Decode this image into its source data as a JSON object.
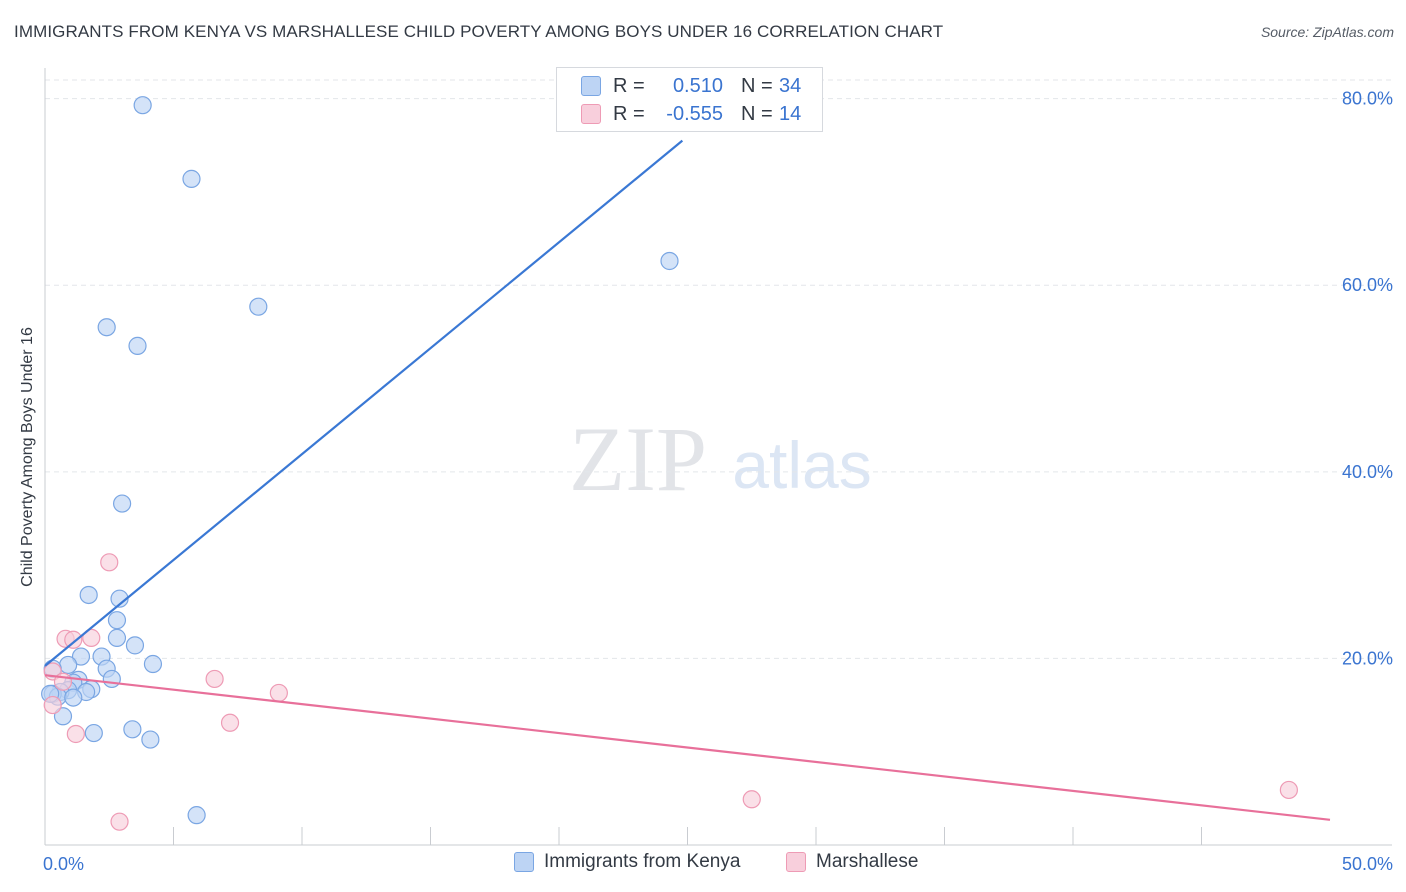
{
  "title": "IMMIGRANTS FROM KENYA VS MARSHALLESE CHILD POVERTY AMONG BOYS UNDER 16 CORRELATION CHART",
  "source": "Source: ZipAtlas.com",
  "watermark": {
    "zip": "ZIP",
    "atlas": "atlas"
  },
  "colors": {
    "blue_fill": "#bdd4f4",
    "blue_stroke": "#7aa6e3",
    "blue_line": "#3a78d4",
    "pink_fill": "#f8cfdc",
    "pink_stroke": "#ee9bb5",
    "pink_line": "#e8709a",
    "tick_label": "#3a74d0",
    "grid": "#e3e6ea",
    "axis": "#c9ccd1"
  },
  "legend": {
    "rows": [
      {
        "r_label": "R =",
        "r_value": "0.510",
        "n_label": "N =",
        "n_value": "34"
      },
      {
        "r_label": "R =",
        "r_value": "-0.555",
        "n_label": "N =",
        "n_value": "14"
      }
    ]
  },
  "bottom_legend": {
    "series1": "Immigrants from Kenya",
    "series2": "Marshallese"
  },
  "chart_data": {
    "type": "scatter",
    "title": "IMMIGRANTS FROM KENYA VS MARSHALLESE CHILD POVERTY AMONG BOYS UNDER 16 CORRELATION CHART",
    "xlabel": "",
    "ylabel": "Child Poverty Among Boys Under 16",
    "xlim": [
      0,
      50
    ],
    "ylim": [
      0,
      82
    ],
    "x_tick_labels": [
      {
        "value": 0,
        "label": "0.0%"
      },
      {
        "value": 50,
        "label": "50.0%"
      }
    ],
    "y_tick_labels": [
      {
        "value": 20,
        "label": "20.0%"
      },
      {
        "value": 40,
        "label": "40.0%"
      },
      {
        "value": 60,
        "label": "60.0%"
      },
      {
        "value": 80,
        "label": "80.0%"
      }
    ],
    "x_minor_ticks": [
      5,
      10,
      15,
      20,
      25,
      30,
      35,
      40,
      45
    ],
    "series": [
      {
        "name": "Immigrants from Kenya",
        "color": "#bdd4f4",
        "points": [
          [
            3.8,
            79.3
          ],
          [
            5.7,
            71.4
          ],
          [
            8.3,
            57.7
          ],
          [
            24.3,
            62.6
          ],
          [
            2.4,
            55.5
          ],
          [
            3.6,
            53.5
          ],
          [
            3.0,
            36.6
          ],
          [
            1.7,
            26.8
          ],
          [
            2.9,
            26.4
          ],
          [
            2.8,
            24.1
          ],
          [
            2.8,
            22.2
          ],
          [
            3.5,
            21.4
          ],
          [
            4.2,
            19.4
          ],
          [
            2.2,
            20.2
          ],
          [
            1.4,
            20.2
          ],
          [
            0.9,
            19.3
          ],
          [
            2.4,
            18.9
          ],
          [
            2.6,
            17.8
          ],
          [
            0.3,
            18.9
          ],
          [
            1.3,
            17.7
          ],
          [
            1.1,
            17.4
          ],
          [
            1.8,
            16.7
          ],
          [
            0.9,
            16.6
          ],
          [
            0.6,
            16.4
          ],
          [
            0.3,
            16.2
          ],
          [
            0.5,
            15.9
          ],
          [
            1.6,
            16.4
          ],
          [
            1.1,
            15.8
          ],
          [
            0.7,
            13.8
          ],
          [
            1.9,
            12.0
          ],
          [
            3.4,
            12.4
          ],
          [
            4.1,
            11.3
          ],
          [
            5.9,
            3.2
          ],
          [
            0.2,
            16.2
          ]
        ]
      },
      {
        "name": "Marshallese",
        "color": "#f8cfdc",
        "points": [
          [
            2.5,
            30.3
          ],
          [
            0.8,
            22.1
          ],
          [
            1.1,
            22.0
          ],
          [
            1.8,
            22.2
          ],
          [
            0.3,
            18.6
          ],
          [
            0.7,
            17.5
          ],
          [
            6.6,
            17.8
          ],
          [
            9.1,
            16.3
          ],
          [
            7.2,
            13.1
          ],
          [
            1.2,
            11.9
          ],
          [
            0.3,
            15.0
          ],
          [
            2.9,
            2.5
          ],
          [
            27.5,
            4.9
          ],
          [
            48.4,
            5.9
          ]
        ]
      }
    ],
    "trend_lines": [
      {
        "series": "Immigrants from Kenya",
        "from": [
          0,
          19.2
        ],
        "to": [
          24.8,
          75.5
        ]
      },
      {
        "series": "Marshallese",
        "from": [
          0,
          18.2
        ],
        "to": [
          50,
          2.7
        ]
      }
    ]
  }
}
